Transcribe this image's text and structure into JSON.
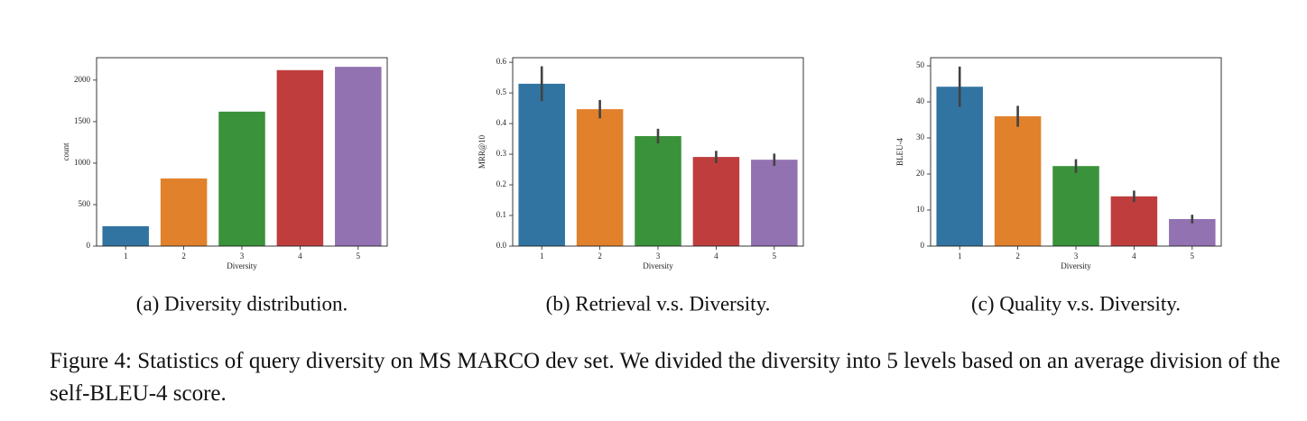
{
  "chart_data": [
    {
      "type": "bar",
      "caption": "(a) Diversity distribution.",
      "xlabel": "Diversity",
      "ylabel": "count",
      "categories": [
        "1",
        "2",
        "3",
        "4",
        "5"
      ],
      "series": [
        {
          "values": [
            240,
            815,
            1620,
            2120,
            2160
          ],
          "colors": [
            "#3274a1",
            "#e1812c",
            "#3a923a",
            "#c03d3e",
            "#9372b2"
          ]
        }
      ],
      "ylim": [
        0,
        2270
      ],
      "yticks": [
        0,
        500,
        1000,
        1500,
        2000
      ]
    },
    {
      "type": "bar",
      "caption": "(b) Retrieval v.s. Diversity.",
      "xlabel": "Diversity",
      "ylabel": "MRR@10",
      "categories": [
        "1",
        "2",
        "3",
        "4",
        "5"
      ],
      "series": [
        {
          "values": [
            0.53,
            0.447,
            0.359,
            0.291,
            0.282
          ],
          "errors": [
            0.057,
            0.03,
            0.024,
            0.02,
            0.02
          ],
          "colors": [
            "#3274a1",
            "#e1812c",
            "#3a923a",
            "#c03d3e",
            "#9372b2"
          ]
        }
      ],
      "ylim": [
        0,
        0.615
      ],
      "yticks": [
        {
          "value": 0,
          "label": "0.0"
        },
        0.1,
        0.2,
        0.3,
        0.4,
        0.5,
        0.6
      ]
    },
    {
      "type": "bar",
      "caption": "(c) Quality v.s. Diversity.",
      "xlabel": "Diversity",
      "ylabel": "BLEU-4",
      "categories": [
        "1",
        "2",
        "3",
        "4",
        "5"
      ],
      "series": [
        {
          "values": [
            44.2,
            36,
            22.2,
            13.8,
            7.5
          ],
          "errors": [
            5.6,
            2.9,
            1.9,
            1.6,
            1.2
          ],
          "colors": [
            "#3274a1",
            "#e1812c",
            "#3a923a",
            "#c03d3e",
            "#9372b2"
          ]
        }
      ],
      "ylim": [
        0,
        52.25
      ],
      "yticks": [
        0,
        10,
        20,
        30,
        40,
        50
      ]
    }
  ],
  "figure_caption": "Figure 4: Statistics of query diversity on MS MARCO dev set. We divided the diversity into 5 levels based on an average division of the self-BLEU-4 score."
}
